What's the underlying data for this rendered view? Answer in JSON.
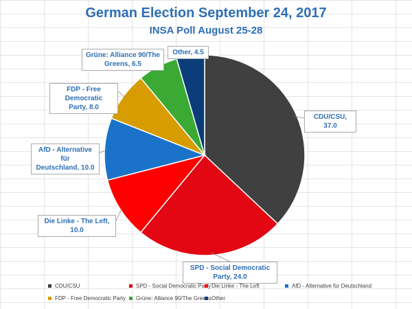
{
  "chart_data": {
    "type": "pie",
    "title": "German Election September 24, 2017",
    "subtitle": "INSA Poll August 25-28",
    "categories": [
      "CDU/CSU",
      "SPD - Social Democratic Party",
      "Die Linke - The Left",
      "AfD - Alternative für Deutschland",
      "FDP - Free Democratic Party",
      "Grüne: Alliance 90/The Greens",
      "Other"
    ],
    "values": [
      37.0,
      24.0,
      10.0,
      10.0,
      8.0,
      6.5,
      4.5
    ],
    "colors": [
      "#404040",
      "#e30613",
      "#ff0000",
      "#1a73c9",
      "#d69c00",
      "#3aaa35",
      "#0b3d7a"
    ],
    "data_labels": [
      "CDU/CSU, 37.0",
      "SPD - Social Democratic Party, 24.0",
      "Die Linke - The Left, 10.0",
      "AfD - Alternative für Deutschland, 10.0",
      "FDP - Free Democratic Party, 8.0",
      "Grüne: Alliance 90/The Greens, 6.5",
      "Other, 4.5"
    ],
    "legend_position": "bottom"
  }
}
